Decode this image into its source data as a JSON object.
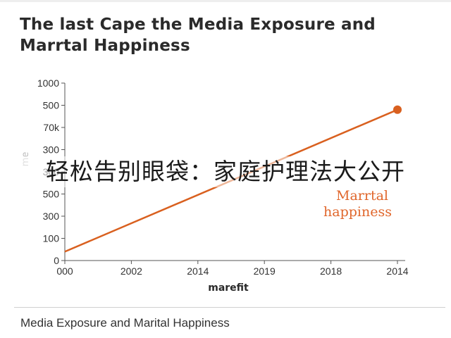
{
  "chart_data": {
    "type": "line",
    "title": "The last Cape the Media Exposure and Marrtal Happiness",
    "xlabel": "marefit",
    "ylabel": "me",
    "x_ticks": [
      "000",
      "2002",
      "2014",
      "2019",
      "2018",
      "2014"
    ],
    "y_ticks": [
      "0",
      "100",
      "300",
      "500",
      "300",
      "300",
      "70k",
      "500",
      "1000"
    ],
    "series": [
      {
        "name": "Marrtal happiness",
        "x": [
          0,
          5
        ],
        "y": [
          0.4,
          6.8
        ],
        "color": "#d9601f"
      }
    ],
    "annotation": [
      "Marrtal",
      "happiness"
    ],
    "grid": false
  },
  "overlay_text": "轻松告别眼袋：家庭护理法大公开",
  "caption": "Media Exposure and Marital Happiness"
}
